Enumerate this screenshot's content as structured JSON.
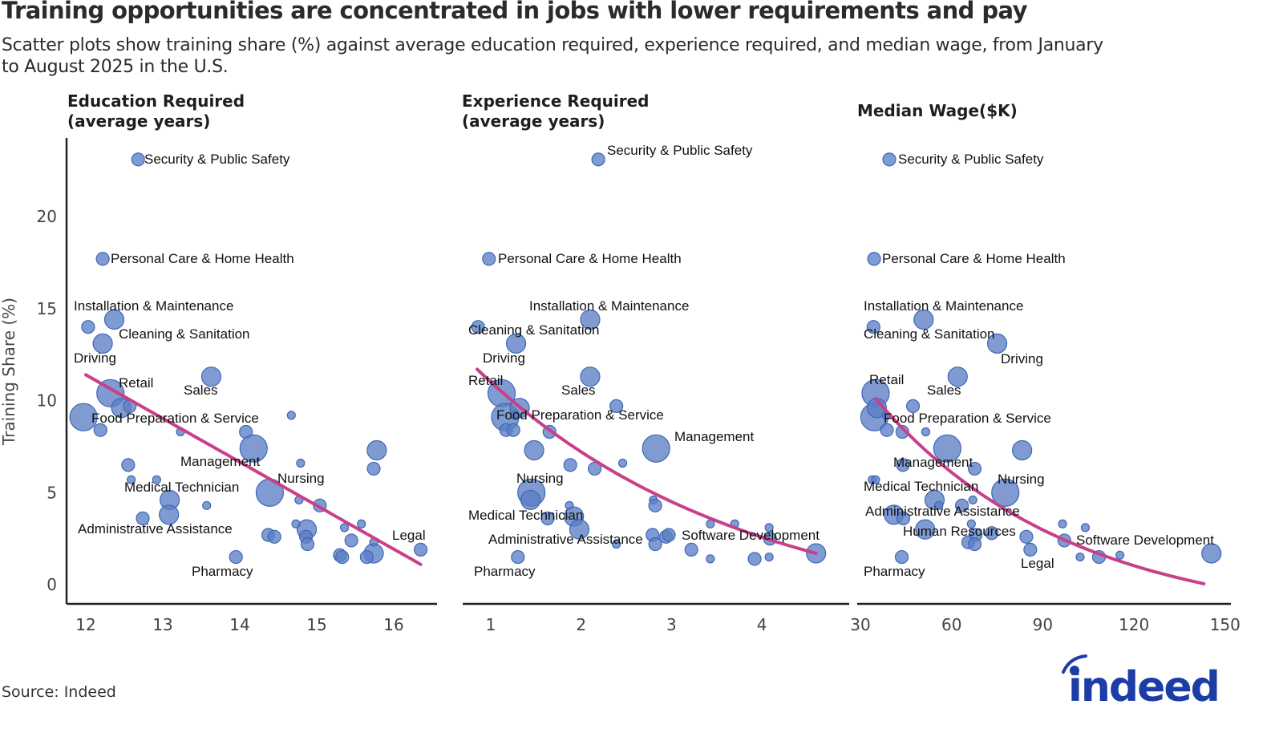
{
  "title": "Training opportunities are concentrated in jobs with lower requirements and pay",
  "subtitle": "Scatter plots show training share (%) against average education required, experience required, and median wage, from January to August 2025 in the U.S.",
  "source": "Source: Indeed",
  "logo_text": "indeed",
  "colors": {
    "point": "#5b7fc4",
    "point_stroke": "#3f67b8",
    "trend": "#c8408a",
    "axis": "#222222",
    "logo": "#1c3ca6"
  },
  "chart_data": [
    {
      "type": "scatter",
      "title": "Education Required\n(average years)",
      "xlabel": "Education Required (average years)",
      "ylabel": "Training Share (%)",
      "xlim": [
        11.75,
        16.6
      ],
      "ylim": [
        -1,
        24.3
      ],
      "xticks": [
        12,
        13,
        14,
        15,
        16
      ],
      "yticks": [
        0,
        5,
        10,
        15,
        20
      ],
      "grid": false,
      "trend": {
        "type": "linear",
        "x": [
          12.0,
          16.35
        ],
        "y": [
          11.4,
          1.1
        ]
      },
      "points": [
        {
          "x": 12.68,
          "y": 23.1,
          "size": 1,
          "label": "Security & Public Safety"
        },
        {
          "x": 12.22,
          "y": 17.7,
          "size": 1,
          "label": "Personal Care & Home Health"
        },
        {
          "x": 12.37,
          "y": 14.4,
          "size": 2,
          "label": "Installation & Maintenance"
        },
        {
          "x": 12.03,
          "y": 14.0,
          "size": 1,
          "label": "Cleaning & Sanitation"
        },
        {
          "x": 12.22,
          "y": 13.1,
          "size": 2,
          "label": "Driving"
        },
        {
          "x": 12.32,
          "y": 10.4,
          "size": 3,
          "label": "Retail"
        },
        {
          "x": 13.63,
          "y": 11.3,
          "size": 2,
          "label": "Sales"
        },
        {
          "x": 11.97,
          "y": 9.1,
          "size": 3,
          "label": "Food Preparation & Service"
        },
        {
          "x": 12.46,
          "y": 9.6,
          "size": 2,
          "label": ""
        },
        {
          "x": 12.57,
          "y": 9.7,
          "size": 1,
          "label": ""
        },
        {
          "x": 12.19,
          "y": 8.4,
          "size": 1,
          "label": ""
        },
        {
          "x": 13.23,
          "y": 8.3,
          "size": 0,
          "label": ""
        },
        {
          "x": 14.08,
          "y": 8.3,
          "size": 1,
          "label": ""
        },
        {
          "x": 14.18,
          "y": 7.4,
          "size": 3,
          "label": "Management"
        },
        {
          "x": 14.67,
          "y": 9.2,
          "size": 0,
          "label": ""
        },
        {
          "x": 12.55,
          "y": 6.5,
          "size": 1,
          "label": ""
        },
        {
          "x": 12.59,
          "y": 5.7,
          "size": 0,
          "label": ""
        },
        {
          "x": 12.92,
          "y": 5.7,
          "size": 0,
          "label": ""
        },
        {
          "x": 13.09,
          "y": 4.6,
          "size": 2,
          "label": "Medical Technician"
        },
        {
          "x": 13.57,
          "y": 4.3,
          "size": 0,
          "label": ""
        },
        {
          "x": 13.08,
          "y": 3.8,
          "size": 2,
          "label": "Administrative Assistance"
        },
        {
          "x": 12.74,
          "y": 3.6,
          "size": 1,
          "label": ""
        },
        {
          "x": 14.39,
          "y": 5.0,
          "size": 3,
          "label": "Nursing"
        },
        {
          "x": 14.79,
          "y": 6.6,
          "size": 0,
          "label": ""
        },
        {
          "x": 14.77,
          "y": 4.6,
          "size": 0,
          "label": ""
        },
        {
          "x": 15.04,
          "y": 4.3,
          "size": 1,
          "label": ""
        },
        {
          "x": 14.87,
          "y": 3.0,
          "size": 2,
          "label": ""
        },
        {
          "x": 14.86,
          "y": 2.6,
          "size": 1,
          "label": ""
        },
        {
          "x": 14.88,
          "y": 2.2,
          "size": 1,
          "label": ""
        },
        {
          "x": 14.73,
          "y": 3.3,
          "size": 0,
          "label": ""
        },
        {
          "x": 14.37,
          "y": 2.7,
          "size": 1,
          "label": ""
        },
        {
          "x": 14.45,
          "y": 2.6,
          "size": 1,
          "label": ""
        },
        {
          "x": 15.36,
          "y": 3.1,
          "size": 0,
          "label": ""
        },
        {
          "x": 15.58,
          "y": 3.3,
          "size": 0,
          "label": ""
        },
        {
          "x": 15.45,
          "y": 2.4,
          "size": 1,
          "label": ""
        },
        {
          "x": 15.78,
          "y": 7.3,
          "size": 2,
          "label": ""
        },
        {
          "x": 15.74,
          "y": 6.3,
          "size": 1,
          "label": ""
        },
        {
          "x": 15.74,
          "y": 2.3,
          "size": 0,
          "label": ""
        },
        {
          "x": 15.74,
          "y": 1.7,
          "size": 2,
          "label": ""
        },
        {
          "x": 15.3,
          "y": 1.6,
          "size": 1,
          "label": ""
        },
        {
          "x": 15.33,
          "y": 1.5,
          "size": 1,
          "label": ""
        },
        {
          "x": 15.65,
          "y": 1.5,
          "size": 1,
          "label": ""
        },
        {
          "x": 13.95,
          "y": 1.5,
          "size": 1,
          "label": "Pharmacy"
        },
        {
          "x": 16.35,
          "y": 1.9,
          "size": 1,
          "label": "Legal"
        }
      ]
    },
    {
      "type": "scatter",
      "title": "Experience Required\n(average years)",
      "xlabel": "Experience Required (average years)",
      "ylabel": "Training Share (%)",
      "xlim": [
        0.7,
        5.0
      ],
      "ylim": [
        -1,
        24.3
      ],
      "xticks": [
        1,
        2,
        3,
        4
      ],
      "yticks": [
        0,
        5,
        10,
        15,
        20
      ],
      "grid": false,
      "trend": {
        "type": "exponential",
        "x": [
          0.85,
          4.6
        ],
        "y": [
          11.7,
          1.7
        ]
      },
      "points": [
        {
          "x": 2.19,
          "y": 23.1,
          "size": 1,
          "label": "Security & Public Safety"
        },
        {
          "x": 0.98,
          "y": 17.7,
          "size": 1,
          "label": "Personal Care & Home Health"
        },
        {
          "x": 2.1,
          "y": 14.4,
          "size": 2,
          "label": "Installation & Maintenance"
        },
        {
          "x": 0.86,
          "y": 14.0,
          "size": 1,
          "label": "Cleaning & Sanitation"
        },
        {
          "x": 1.28,
          "y": 13.1,
          "size": 2,
          "label": "Driving"
        },
        {
          "x": 1.12,
          "y": 10.4,
          "size": 3,
          "label": "Retail"
        },
        {
          "x": 2.1,
          "y": 11.3,
          "size": 2,
          "label": "Sales"
        },
        {
          "x": 1.16,
          "y": 9.1,
          "size": 3,
          "label": "Food Preparation & Service"
        },
        {
          "x": 1.32,
          "y": 9.6,
          "size": 2,
          "label": ""
        },
        {
          "x": 1.27,
          "y": 9.2,
          "size": 0,
          "label": ""
        },
        {
          "x": 1.17,
          "y": 8.4,
          "size": 1,
          "label": ""
        },
        {
          "x": 1.25,
          "y": 8.4,
          "size": 1,
          "label": ""
        },
        {
          "x": 1.65,
          "y": 8.3,
          "size": 1,
          "label": ""
        },
        {
          "x": 2.39,
          "y": 9.7,
          "size": 1,
          "label": ""
        },
        {
          "x": 2.83,
          "y": 7.4,
          "size": 3,
          "label": "Management"
        },
        {
          "x": 1.48,
          "y": 7.3,
          "size": 2,
          "label": ""
        },
        {
          "x": 1.88,
          "y": 6.5,
          "size": 1,
          "label": ""
        },
        {
          "x": 2.15,
          "y": 6.3,
          "size": 1,
          "label": ""
        },
        {
          "x": 2.46,
          "y": 6.6,
          "size": 0,
          "label": ""
        },
        {
          "x": 1.45,
          "y": 5.0,
          "size": 3,
          "label": "Nursing"
        },
        {
          "x": 1.44,
          "y": 4.6,
          "size": 2,
          "label": "Medical Technician"
        },
        {
          "x": 1.63,
          "y": 3.6,
          "size": 1,
          "label": ""
        },
        {
          "x": 1.87,
          "y": 4.3,
          "size": 0,
          "label": ""
        },
        {
          "x": 1.92,
          "y": 3.7,
          "size": 2,
          "label": ""
        },
        {
          "x": 1.98,
          "y": 3.0,
          "size": 2,
          "label": "Administrative Assistance"
        },
        {
          "x": 2.39,
          "y": 2.2,
          "size": 0,
          "label": ""
        },
        {
          "x": 2.8,
          "y": 4.6,
          "size": 0,
          "label": ""
        },
        {
          "x": 2.82,
          "y": 4.3,
          "size": 1,
          "label": ""
        },
        {
          "x": 2.79,
          "y": 2.7,
          "size": 1,
          "label": ""
        },
        {
          "x": 2.82,
          "y": 2.2,
          "size": 1,
          "label": ""
        },
        {
          "x": 2.94,
          "y": 2.6,
          "size": 1,
          "label": ""
        },
        {
          "x": 2.97,
          "y": 2.7,
          "size": 1,
          "label": ""
        },
        {
          "x": 3.22,
          "y": 1.9,
          "size": 1,
          "label": ""
        },
        {
          "x": 3.43,
          "y": 3.3,
          "size": 0,
          "label": ""
        },
        {
          "x": 3.43,
          "y": 1.4,
          "size": 0,
          "label": ""
        },
        {
          "x": 3.7,
          "y": 3.3,
          "size": 0,
          "label": ""
        },
        {
          "x": 3.92,
          "y": 1.4,
          "size": 1,
          "label": ""
        },
        {
          "x": 4.08,
          "y": 3.1,
          "size": 0,
          "label": ""
        },
        {
          "x": 4.09,
          "y": 2.5,
          "size": 1,
          "label": ""
        },
        {
          "x": 4.08,
          "y": 1.5,
          "size": 0,
          "label": ""
        },
        {
          "x": 1.3,
          "y": 1.5,
          "size": 1,
          "label": "Pharmacy"
        },
        {
          "x": 4.6,
          "y": 1.7,
          "size": 2,
          "label": "Software Development"
        }
      ]
    },
    {
      "type": "scatter",
      "title": "Median Wage($K)",
      "xlabel": "Median Wage ($K)",
      "ylabel": "Training Share (%)",
      "xlim": [
        29,
        152
      ],
      "ylim": [
        -1,
        24.3
      ],
      "xticks": [
        30,
        60,
        90,
        120,
        150
      ],
      "yticks": [
        0,
        5,
        10,
        15,
        20
      ],
      "grid": false,
      "trend": {
        "type": "exponential",
        "x": [
          35,
          143
        ],
        "y": [
          10.1,
          0.0
        ]
      },
      "points": [
        {
          "x": 39.5,
          "y": 23.1,
          "size": 1,
          "label": "Security & Public Safety"
        },
        {
          "x": 34.5,
          "y": 17.7,
          "size": 1,
          "label": "Personal Care & Home Health"
        },
        {
          "x": 50.8,
          "y": 14.4,
          "size": 2,
          "label": "Installation & Maintenance"
        },
        {
          "x": 34.3,
          "y": 14.0,
          "size": 1,
          "label": "Cleaning & Sanitation"
        },
        {
          "x": 75.0,
          "y": 13.1,
          "size": 2,
          "label": "Driving"
        },
        {
          "x": 35.0,
          "y": 10.4,
          "size": 3,
          "label": "Retail"
        },
        {
          "x": 62.0,
          "y": 11.3,
          "size": 2,
          "label": "Sales"
        },
        {
          "x": 34.6,
          "y": 9.1,
          "size": 3,
          "label": "Food Preparation & Service"
        },
        {
          "x": 35.4,
          "y": 9.6,
          "size": 2,
          "label": ""
        },
        {
          "x": 47.3,
          "y": 9.7,
          "size": 1,
          "label": ""
        },
        {
          "x": 38.5,
          "y": 9.2,
          "size": 0,
          "label": ""
        },
        {
          "x": 38.7,
          "y": 8.4,
          "size": 1,
          "label": ""
        },
        {
          "x": 43.8,
          "y": 8.3,
          "size": 1,
          "label": ""
        },
        {
          "x": 51.5,
          "y": 8.3,
          "size": 0,
          "label": ""
        },
        {
          "x": 58.6,
          "y": 7.4,
          "size": 3,
          "label": "Management"
        },
        {
          "x": 83.2,
          "y": 7.3,
          "size": 2,
          "label": ""
        },
        {
          "x": 44.0,
          "y": 6.5,
          "size": 1,
          "label": "Medical Technician"
        },
        {
          "x": 67.6,
          "y": 6.3,
          "size": 1,
          "label": ""
        },
        {
          "x": 33.9,
          "y": 5.7,
          "size": 0,
          "label": ""
        },
        {
          "x": 35.0,
          "y": 5.7,
          "size": 0,
          "label": ""
        },
        {
          "x": 77.7,
          "y": 5.0,
          "size": 3,
          "label": "Nursing"
        },
        {
          "x": 54.4,
          "y": 4.6,
          "size": 2,
          "label": "Administrative Assistance"
        },
        {
          "x": 55.8,
          "y": 4.3,
          "size": 0,
          "label": ""
        },
        {
          "x": 63.4,
          "y": 4.3,
          "size": 1,
          "label": ""
        },
        {
          "x": 67.0,
          "y": 4.6,
          "size": 0,
          "label": ""
        },
        {
          "x": 41.0,
          "y": 3.8,
          "size": 2,
          "label": ""
        },
        {
          "x": 44.1,
          "y": 3.6,
          "size": 1,
          "label": ""
        },
        {
          "x": 51.3,
          "y": 3.0,
          "size": 2,
          "label": "Human Resources"
        },
        {
          "x": 66.5,
          "y": 3.3,
          "size": 0,
          "label": ""
        },
        {
          "x": 67.9,
          "y": 2.7,
          "size": 1,
          "label": ""
        },
        {
          "x": 73.2,
          "y": 2.8,
          "size": 1,
          "label": ""
        },
        {
          "x": 65.5,
          "y": 2.3,
          "size": 1,
          "label": ""
        },
        {
          "x": 67.6,
          "y": 2.2,
          "size": 1,
          "label": ""
        },
        {
          "x": 84.6,
          "y": 2.6,
          "size": 1,
          "label": ""
        },
        {
          "x": 85.9,
          "y": 1.9,
          "size": 1,
          "label": "Legal"
        },
        {
          "x": 96.5,
          "y": 3.3,
          "size": 0,
          "label": ""
        },
        {
          "x": 97.1,
          "y": 2.4,
          "size": 1,
          "label": ""
        },
        {
          "x": 104.0,
          "y": 3.1,
          "size": 0,
          "label": ""
        },
        {
          "x": 102.3,
          "y": 1.5,
          "size": 0,
          "label": ""
        },
        {
          "x": 108.5,
          "y": 1.5,
          "size": 1,
          "label": ""
        },
        {
          "x": 115.4,
          "y": 1.6,
          "size": 0,
          "label": ""
        },
        {
          "x": 43.6,
          "y": 1.5,
          "size": 1,
          "label": "Pharmacy"
        },
        {
          "x": 145.5,
          "y": 1.7,
          "size": 2,
          "label": "Software Development"
        }
      ]
    }
  ],
  "shared_ylabel": "Training Share (%)"
}
